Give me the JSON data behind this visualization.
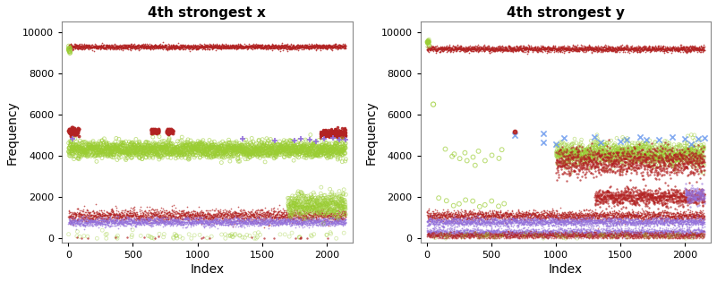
{
  "title_left": "4th strongest x",
  "title_right": "4th strongest y",
  "xlabel": "Index",
  "ylabel": "Frequency",
  "xlim_left": [
    -50,
    2200
  ],
  "xlim_right": [
    -50,
    2200
  ],
  "ylim": [
    -200,
    10500
  ],
  "yticks": [
    0,
    2000,
    4000,
    6000,
    8000,
    10000
  ],
  "xticks": [
    0,
    500,
    1000,
    1500,
    2000
  ],
  "n_points": 2150,
  "bg_color": "#ffffff",
  "panel_bg": "#ffffff",
  "colors": {
    "red": "#B22222",
    "green": "#9ACD32",
    "blue": "#6495ED",
    "purple": "#9370DB"
  },
  "figsize": [
    8.01,
    3.15
  ],
  "dpi": 100
}
